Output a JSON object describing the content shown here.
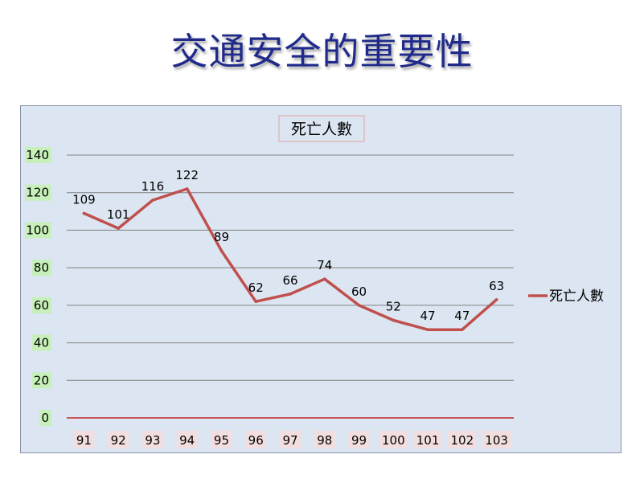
{
  "slide_title": "交通安全的重要性",
  "colors": {
    "title": "#1f2a8a",
    "plot_background": "#dce6f2",
    "line": "#c0504d",
    "gridline": "#808080",
    "x_axis": "#c00000"
  },
  "chart_data": {
    "type": "line",
    "title": "死亡人數",
    "categories": [
      "91",
      "92",
      "93",
      "94",
      "95",
      "96",
      "97",
      "98",
      "99",
      "100",
      "101",
      "102",
      "103"
    ],
    "series": [
      {
        "name": "死亡人數",
        "values": [
          109,
          101,
          116,
          122,
          89,
          62,
          66,
          74,
          60,
          52,
          47,
          47,
          63
        ]
      }
    ],
    "xlabel": "",
    "ylabel": "",
    "ylim": [
      0,
      140
    ],
    "yticks": [
      0,
      20,
      40,
      60,
      80,
      100,
      120,
      140
    ],
    "grid": true,
    "legend_position": "right",
    "data_labels": true
  }
}
